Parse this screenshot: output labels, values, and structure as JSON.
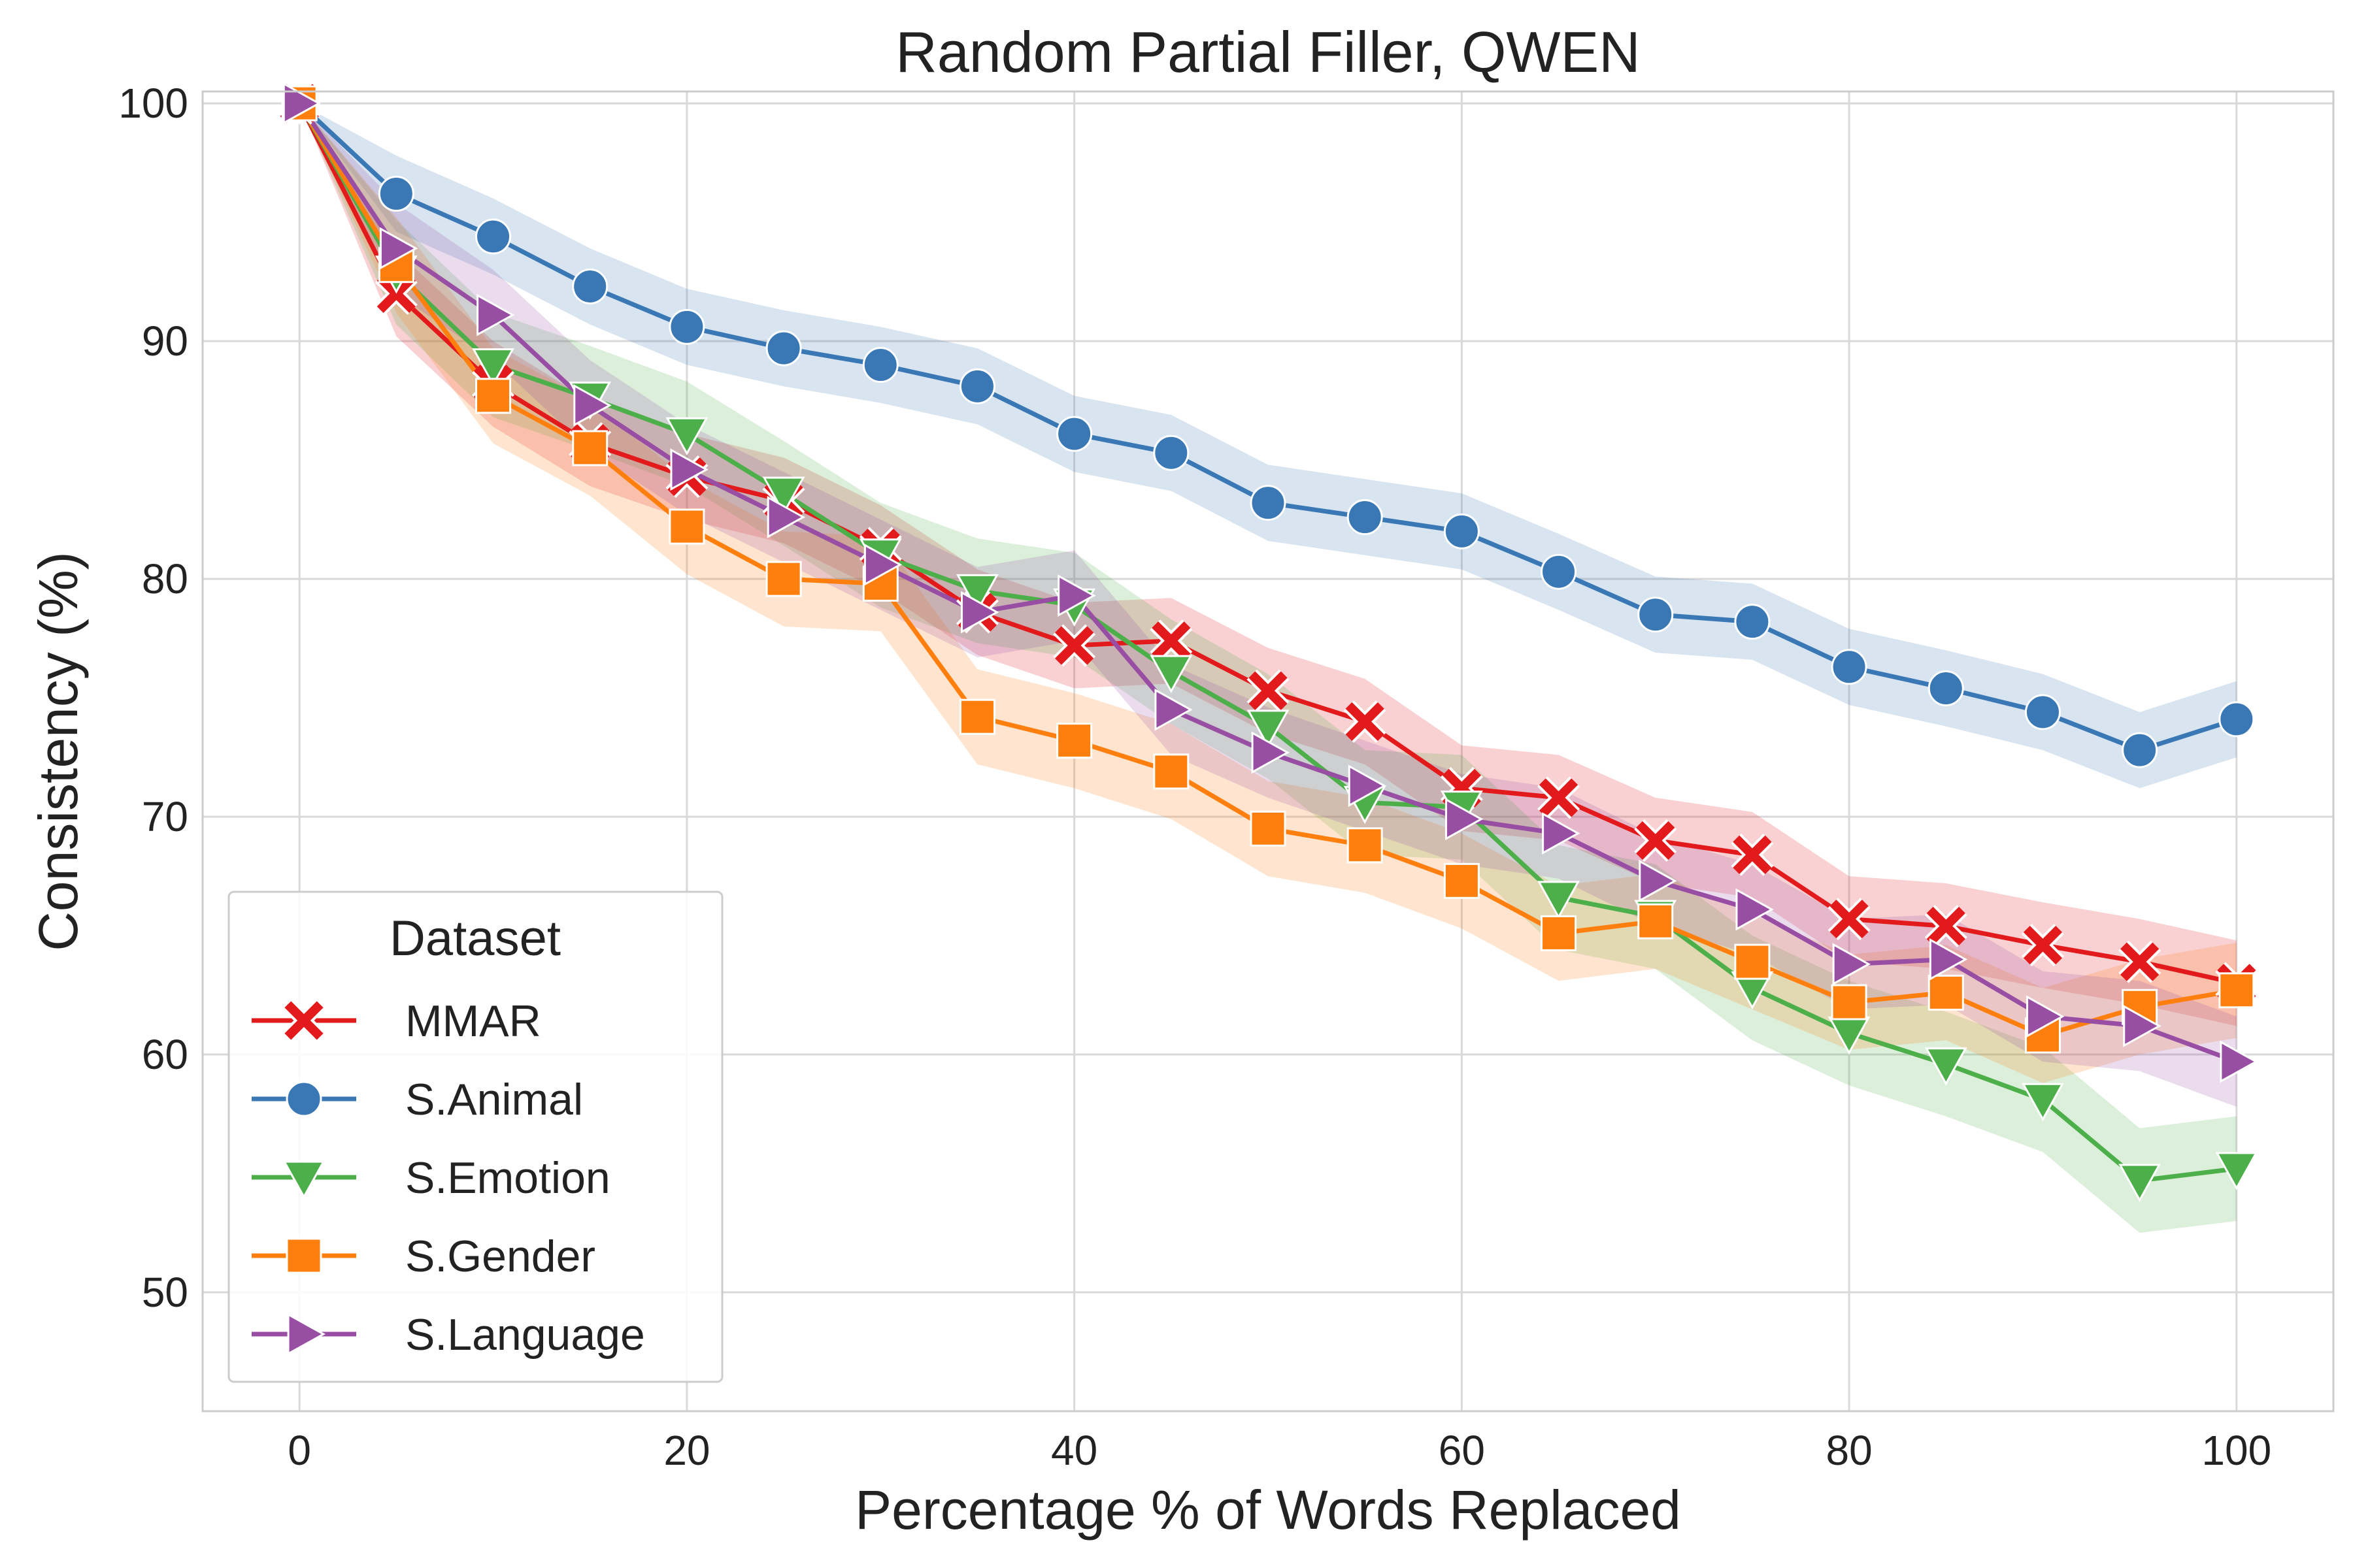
{
  "chart_data": {
    "type": "line",
    "title": "Random Partial Filler, QWEN",
    "xlabel": "Percentage % of Words Replaced",
    "ylabel": "Consistency (%)",
    "xlim": [
      -5,
      105
    ],
    "ylim": [
      45,
      100.5
    ],
    "xticks": [
      0,
      20,
      40,
      60,
      80,
      100
    ],
    "yticks": [
      50,
      60,
      70,
      80,
      90,
      100
    ],
    "grid": true,
    "legend": {
      "title": "Dataset",
      "position": "lower-left"
    },
    "x": [
      0,
      5,
      10,
      15,
      20,
      25,
      30,
      35,
      40,
      45,
      50,
      55,
      60,
      65,
      70,
      75,
      80,
      85,
      90,
      95,
      100
    ],
    "series": [
      {
        "name": "MMAR",
        "color": "#e31a1c",
        "marker": "x",
        "values": [
          100,
          92.0,
          88.2,
          85.7,
          84.3,
          83.3,
          81.3,
          78.6,
          77.2,
          77.4,
          75.3,
          74.0,
          71.2,
          70.8,
          69.0,
          68.4,
          65.7,
          65.4,
          64.6,
          63.9,
          63.0
        ],
        "band": 1.8
      },
      {
        "name": "S.Animal",
        "color": "#3a78b5",
        "marker": "circle",
        "values": [
          100,
          96.2,
          94.4,
          92.3,
          90.6,
          89.7,
          89.0,
          88.1,
          86.1,
          85.3,
          83.2,
          82.6,
          82.0,
          80.3,
          78.5,
          78.2,
          76.3,
          75.4,
          74.4,
          72.8,
          74.1
        ],
        "band": 1.6
      },
      {
        "name": "S.Emotion",
        "color": "#4daf4a",
        "marker": "triangle-down",
        "values": [
          100,
          92.9,
          89.0,
          87.6,
          86.1,
          83.6,
          81.0,
          79.5,
          78.9,
          76.1,
          73.8,
          70.6,
          70.4,
          66.6,
          65.8,
          62.8,
          60.9,
          59.6,
          58.1,
          54.7,
          55.2
        ],
        "band": 2.2
      },
      {
        "name": "S.Gender",
        "color": "#ff7f0e",
        "marker": "square",
        "values": [
          100,
          93.2,
          87.7,
          85.5,
          82.2,
          80.0,
          79.8,
          74.2,
          73.2,
          71.9,
          69.5,
          68.8,
          67.3,
          65.1,
          65.6,
          63.9,
          62.2,
          62.6,
          60.8,
          62.0,
          62.7
        ],
        "band": 2.0
      },
      {
        "name": "S.Language",
        "color": "#984ea3",
        "marker": "triangle-right",
        "values": [
          100,
          93.9,
          91.1,
          87.3,
          84.6,
          82.6,
          80.6,
          78.6,
          79.3,
          74.5,
          72.7,
          71.3,
          69.9,
          69.3,
          67.3,
          66.1,
          63.8,
          64.0,
          61.6,
          61.2,
          59.7
        ],
        "band": 1.9
      }
    ]
  }
}
